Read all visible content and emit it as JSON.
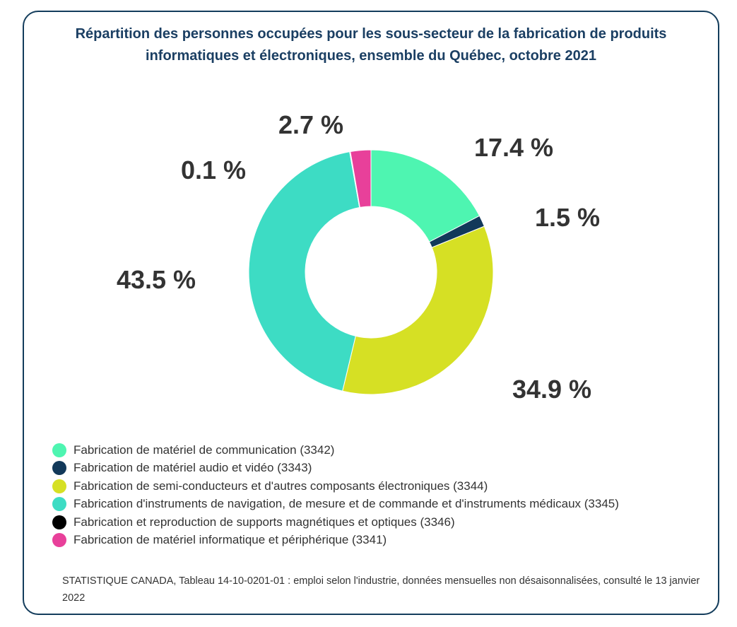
{
  "chart_data": {
    "type": "pie",
    "donut": true,
    "title": "Répartition des personnes occupées pour les sous-secteur de la fabrication de produits informatiques et électroniques, ensemble du Québec, octobre 2021",
    "slices": [
      {
        "name": "Fabrication de matériel de communication (3342)",
        "value": 17.4,
        "label": "17.4 %",
        "color": "#4ef5b1"
      },
      {
        "name": "Fabrication de matériel audio et vidéo (3343)",
        "value": 1.5,
        "label": "1.5 %",
        "color": "#12395a"
      },
      {
        "name": "Fabrication de semi-conducteurs et d'autres composants électroniques (3344)",
        "value": 34.9,
        "label": "34.9 %",
        "color": "#d6e024"
      },
      {
        "name": "Fabrication d'instruments de navigation, de mesure et de commande et d'instruments médicaux (3345)",
        "value": 43.5,
        "label": "43.5 %",
        "color": "#3ddcc4"
      },
      {
        "name": "Fabrication et reproduction de supports magnétiques et optiques (3346)",
        "value": 0.1,
        "label": "0.1 %",
        "color": "#000000"
      },
      {
        "name": "Fabrication de matériel informatique et périphérique (3341)",
        "value": 2.7,
        "label": "2.7 %",
        "color": "#e8409a"
      }
    ],
    "legend_position": "bottom-left",
    "source": "STATISTIQUE CANADA, Tableau 14-10-0201-01 : emploi selon l'industrie, données mensuelles non désaisonnalisées, consulté le 13 janvier 2022"
  }
}
